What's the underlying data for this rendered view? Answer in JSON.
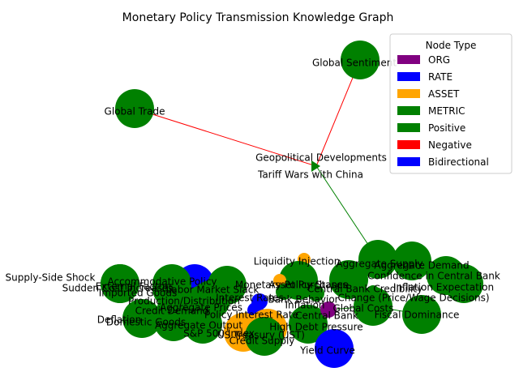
{
  "title": "Monetary Policy Transmission Knowledge Graph",
  "legend": {
    "title": "Node Type",
    "items": [
      {
        "label": "ORG",
        "color": "#800080"
      },
      {
        "label": "RATE",
        "color": "#0000ff"
      },
      {
        "label": "ASSET",
        "color": "#ffa500"
      },
      {
        "label": "METRIC",
        "color": "#008000"
      },
      {
        "label": "Positive",
        "color": "#008000"
      },
      {
        "label": "Negative",
        "color": "#ff0000"
      },
      {
        "label": "Bidirectional",
        "color": "#0000ff"
      }
    ]
  },
  "node_type_colors": {
    "ORG": "#800080",
    "RATE": "#0000ff",
    "ASSET": "#ffa500",
    "METRIC": "#008000"
  },
  "nodes": [
    {
      "id": "global-sentiment",
      "label": "Global Sentiment",
      "type": "METRIC"
    },
    {
      "id": "global-trade",
      "label": "Global Trade",
      "type": "METRIC"
    },
    {
      "id": "geopolitical",
      "label": "Geopolitical Developments",
      "type": "METRIC"
    },
    {
      "id": "tariff-wars",
      "label": "Tariff Wars with China",
      "type": "METRIC"
    },
    {
      "id": "supply-shock",
      "label": "Supply-Side Shock",
      "type": "METRIC"
    },
    {
      "id": "sudden-cost",
      "label": "Sudden Cost Increases",
      "type": "METRIC"
    },
    {
      "id": "external-factors",
      "label": "External Factors",
      "type": "RATE"
    },
    {
      "id": "accommodative",
      "label": "Accommodative Policy",
      "type": "METRIC"
    },
    {
      "id": "imported-goods",
      "label": "Imported Goods",
      "type": "METRIC"
    },
    {
      "id": "labor-slack",
      "label": "Labor Market Slack",
      "type": "METRIC"
    },
    {
      "id": "production",
      "label": "Production/Distribution",
      "type": "METRIC"
    },
    {
      "id": "interest-rates",
      "label": "Interest Rates",
      "type": "RATE"
    },
    {
      "id": "aggregate-prices",
      "label": "Aggregate Prices",
      "type": "METRIC"
    },
    {
      "id": "credit-demand",
      "label": "Credit Demand",
      "type": "METRIC"
    },
    {
      "id": "policy-rate",
      "label": "Policy Interest Rate",
      "type": "RATE"
    },
    {
      "id": "deflation",
      "label": "Deflation",
      "type": "METRIC"
    },
    {
      "id": "domestic-goods",
      "label": "Domestic Goods",
      "type": "METRIC"
    },
    {
      "id": "aggregate-output",
      "label": "Aggregate Output",
      "type": "METRIC"
    },
    {
      "id": "sp500",
      "label": "S&P 500 Index",
      "type": "ASSET"
    },
    {
      "id": "us-treasury",
      "label": "US Treasury (UST)",
      "type": "ASSET"
    },
    {
      "id": "credit-supply",
      "label": "Credit Supply",
      "type": "METRIC"
    },
    {
      "id": "high-debt",
      "label": "High Debt Pressure",
      "type": "METRIC"
    },
    {
      "id": "liquidity",
      "label": "Liquidity Injection",
      "type": "ASSET"
    },
    {
      "id": "monetary-stance",
      "label": "Monetary Policy Stance",
      "type": "METRIC"
    },
    {
      "id": "asset-purchases",
      "label": "Asset Purchases",
      "type": "ASSET"
    },
    {
      "id": "bank-behavior",
      "label": "Bank Behavior",
      "type": "METRIC"
    },
    {
      "id": "inflation",
      "label": "Inflation",
      "type": "METRIC"
    },
    {
      "id": "aggregate-supply",
      "label": "Aggregate Supply",
      "type": "METRIC"
    },
    {
      "id": "aggregate-demand",
      "label": "Aggregate Demand",
      "type": "METRIC"
    },
    {
      "id": "confidence",
      "label": "Confidence in Central Bank",
      "type": "METRIC"
    },
    {
      "id": "cb-credibility",
      "label": "Central Bank Credibility",
      "type": "METRIC"
    },
    {
      "id": "inflation-expectation",
      "label": "Inflation Expectation",
      "type": "METRIC"
    },
    {
      "id": "change",
      "label": "Change (Price/Wage Decisions)",
      "type": "METRIC"
    },
    {
      "id": "global-costs",
      "label": "Global Costs",
      "type": "METRIC"
    },
    {
      "id": "central-bank",
      "label": "Central Bank",
      "type": "ORG"
    },
    {
      "id": "fiscal-dominance",
      "label": "Fiscal Dominance",
      "type": "METRIC"
    },
    {
      "id": "yield-curve",
      "label": "Yield Curve",
      "type": "RATE"
    }
  ],
  "edges": [
    {
      "from": "global-sentiment",
      "to": "tariff-wars",
      "relation": "Negative"
    },
    {
      "from": "global-trade",
      "to": "tariff-wars",
      "relation": "Negative"
    },
    {
      "from": "tariff-wars",
      "to": "aggregate-supply",
      "relation": "Positive"
    },
    {
      "from": "supply-shock",
      "to": "sudden-cost",
      "relation": "Positive"
    },
    {
      "from": "global-costs",
      "to": "fiscal-dominance",
      "relation": "Positive"
    },
    {
      "from": "central-bank",
      "to": "global-costs",
      "relation": "Positive"
    }
  ]
}
